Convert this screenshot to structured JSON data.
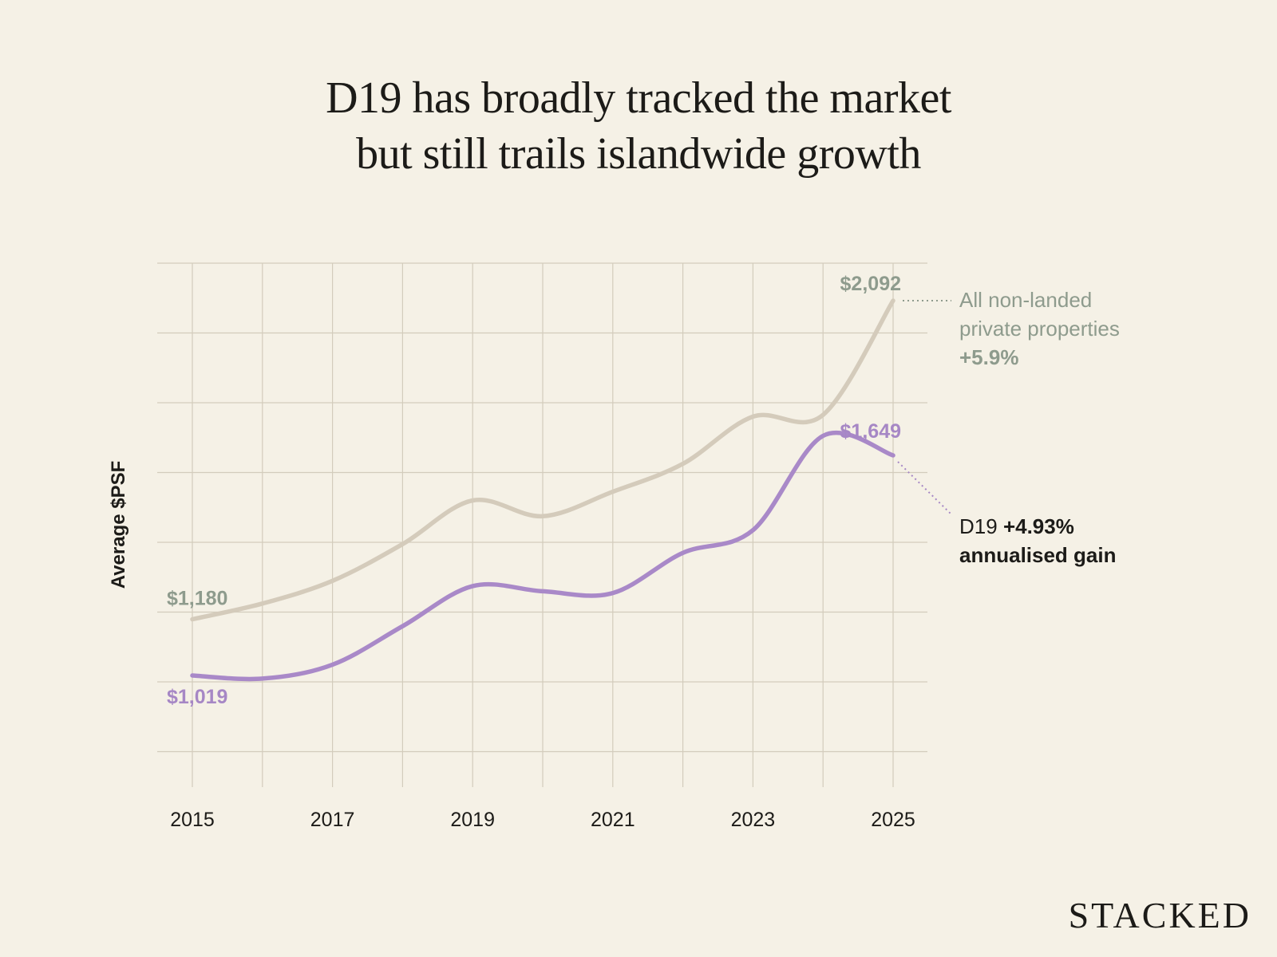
{
  "title_lines": [
    "D19 has broadly tracked the market",
    "but still trails islandwide growth"
  ],
  "brand": "STACKED",
  "colors": {
    "background": "#f5f1e6",
    "all_series": "#d4cbbb",
    "all_label": "#8e9b8d",
    "d19_series": "#a989c8",
    "d19_label": "#a687c5",
    "grid": "#d3ccbc",
    "text": "#1c1b18"
  },
  "legend": {
    "all": {
      "line1": "All non-landed",
      "line2": "private properties",
      "pct": "+5.9%"
    },
    "d19": {
      "name": "D19",
      "pct": "+4.93%",
      "line2": "annualised gain"
    }
  },
  "chart_data": {
    "type": "line",
    "ylabel": "Average $PSF",
    "x": [
      2015,
      2016,
      2017,
      2018,
      2019,
      2020,
      2021,
      2022,
      2023,
      2024,
      2025
    ],
    "xticks": [
      "2015",
      "2017",
      "2019",
      "2021",
      "2023",
      "2025"
    ],
    "ylim": [
      800,
      2150
    ],
    "grid": true,
    "series": [
      {
        "name": "All non-landed private properties",
        "values": [
          1180,
          1225,
          1290,
          1395,
          1520,
          1475,
          1545,
          1625,
          1760,
          1765,
          2092
        ],
        "start_label": "$1,180",
        "end_label": "$2,092"
      },
      {
        "name": "D19",
        "values": [
          1019,
          1010,
          1050,
          1160,
          1275,
          1260,
          1255,
          1370,
          1435,
          1705,
          1649
        ],
        "start_label": "$1,019",
        "end_label": "$1,649"
      }
    ]
  }
}
